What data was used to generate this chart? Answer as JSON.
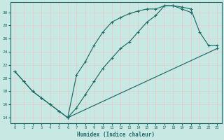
{
  "xlabel": "Humidex (Indice chaleur)",
  "xlim": [
    -0.5,
    23.5
  ],
  "ylim": [
    13.2,
    31.5
  ],
  "xticks": [
    0,
    1,
    2,
    3,
    4,
    5,
    6,
    7,
    8,
    9,
    10,
    11,
    12,
    13,
    14,
    15,
    16,
    17,
    18,
    19,
    20,
    21,
    22,
    23
  ],
  "yticks": [
    14,
    16,
    18,
    20,
    22,
    24,
    26,
    28,
    30
  ],
  "bg_color": "#c8e8e4",
  "line_color": "#1e6b65",
  "grid_color": "#e8c8c8",
  "line1_x": [
    0,
    1,
    2,
    3,
    4,
    5,
    6,
    7,
    8,
    9,
    10,
    11,
    12,
    13,
    14,
    15,
    16,
    17,
    18,
    19,
    20,
    21,
    22,
    23
  ],
  "line1_y": [
    21.0,
    19.5,
    18.0,
    17.0,
    16.0,
    15.0,
    14.0,
    15.5,
    17.5,
    19.5,
    21.5,
    23.0,
    24.5,
    25.5,
    27.0,
    28.5,
    29.5,
    31.0,
    31.0,
    30.8,
    30.5,
    27.0,
    25.0,
    25.0
  ],
  "line2_x": [
    0,
    1,
    2,
    3,
    4,
    5,
    6,
    7,
    8,
    9,
    10,
    11,
    12,
    13,
    14,
    15,
    16,
    17,
    18,
    19,
    20
  ],
  "line2_y": [
    21.0,
    19.5,
    18.0,
    17.0,
    16.0,
    15.0,
    14.0,
    20.5,
    22.5,
    25.0,
    27.0,
    28.5,
    29.2,
    29.8,
    30.2,
    30.5,
    30.5,
    31.0,
    31.0,
    30.5,
    30.0
  ],
  "line3_x": [
    6,
    23
  ],
  "line3_y": [
    14.0,
    24.5
  ]
}
